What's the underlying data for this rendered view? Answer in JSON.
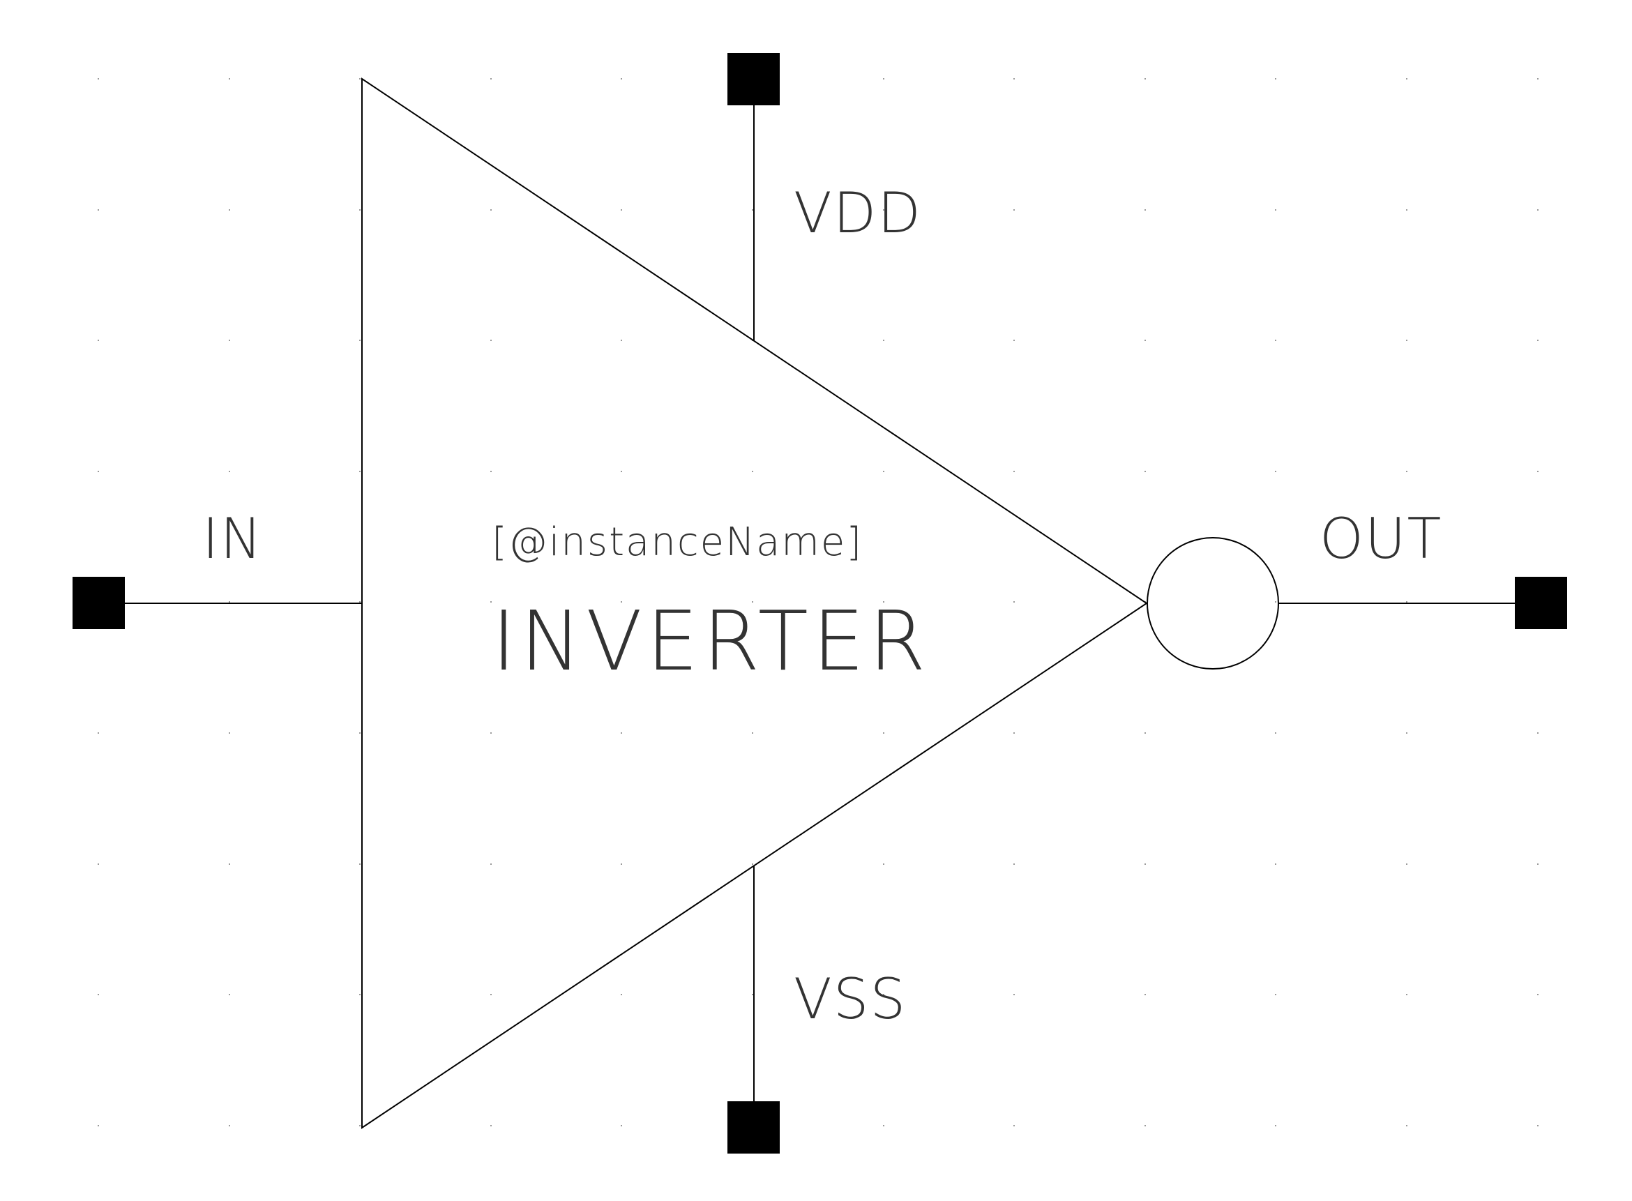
{
  "diagram": {
    "type": "schematic-symbol",
    "colors": {
      "background": "#ffffff",
      "stroke": "#000000",
      "label": "#333333",
      "pin_fill": "#000000",
      "grid_dot": "#9a9a9a"
    },
    "cell_name": "INVERTER",
    "instance_name": "[@instanceName]",
    "pins": {
      "in": "IN",
      "out": "OUT",
      "vdd": "VDD",
      "vss": "VSS"
    }
  }
}
